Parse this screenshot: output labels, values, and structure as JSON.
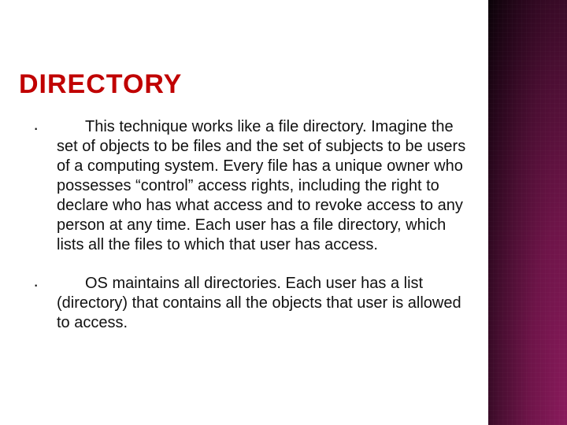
{
  "slide": {
    "title": "DIRECTORY",
    "title_color": "#c00000",
    "title_fontsize": 34,
    "body_fontsize": 20,
    "body_color": "#111111",
    "background_color": "#ffffff",
    "accent_gradient": [
      "#8a1a5c",
      "#6d1448",
      "#4a0e32",
      "#2a071d",
      "#0a0208"
    ],
    "bullets": [
      "This technique works like a file directory. Imagine the set of objects to be files and the set of subjects to be users of a computing system. Every file has a unique owner who possesses “control” access rights, including the right to declare who has what access and to revoke access to any person at any time. Each user has a file directory, which lists all the files to which that user has access.",
      "OS maintains all directories. Each user has a list (directory) that contains all the objects that user is allowed to access."
    ]
  }
}
